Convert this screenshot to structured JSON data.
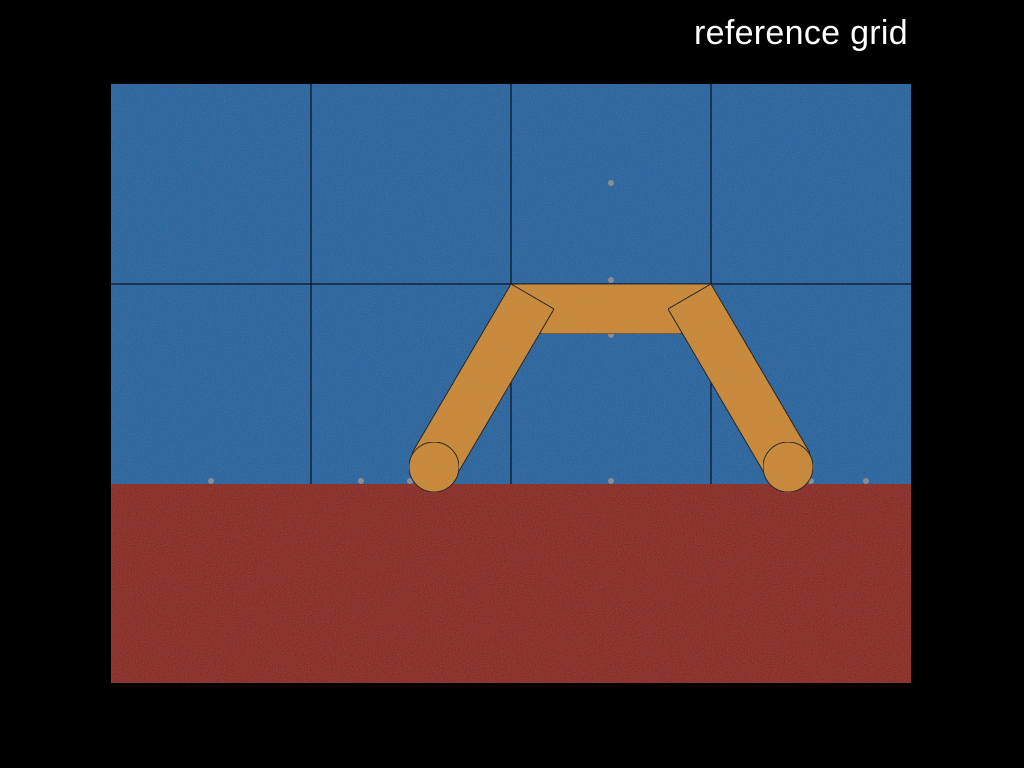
{
  "title": "reference grid",
  "colors": {
    "background": "#000000",
    "sky": "#1e639f",
    "ground": "#8a2217",
    "robot": "#c8872f",
    "grid_line": "#000000",
    "marker_dot": "#8d8d8d",
    "title_text": "#ffffff"
  }
}
